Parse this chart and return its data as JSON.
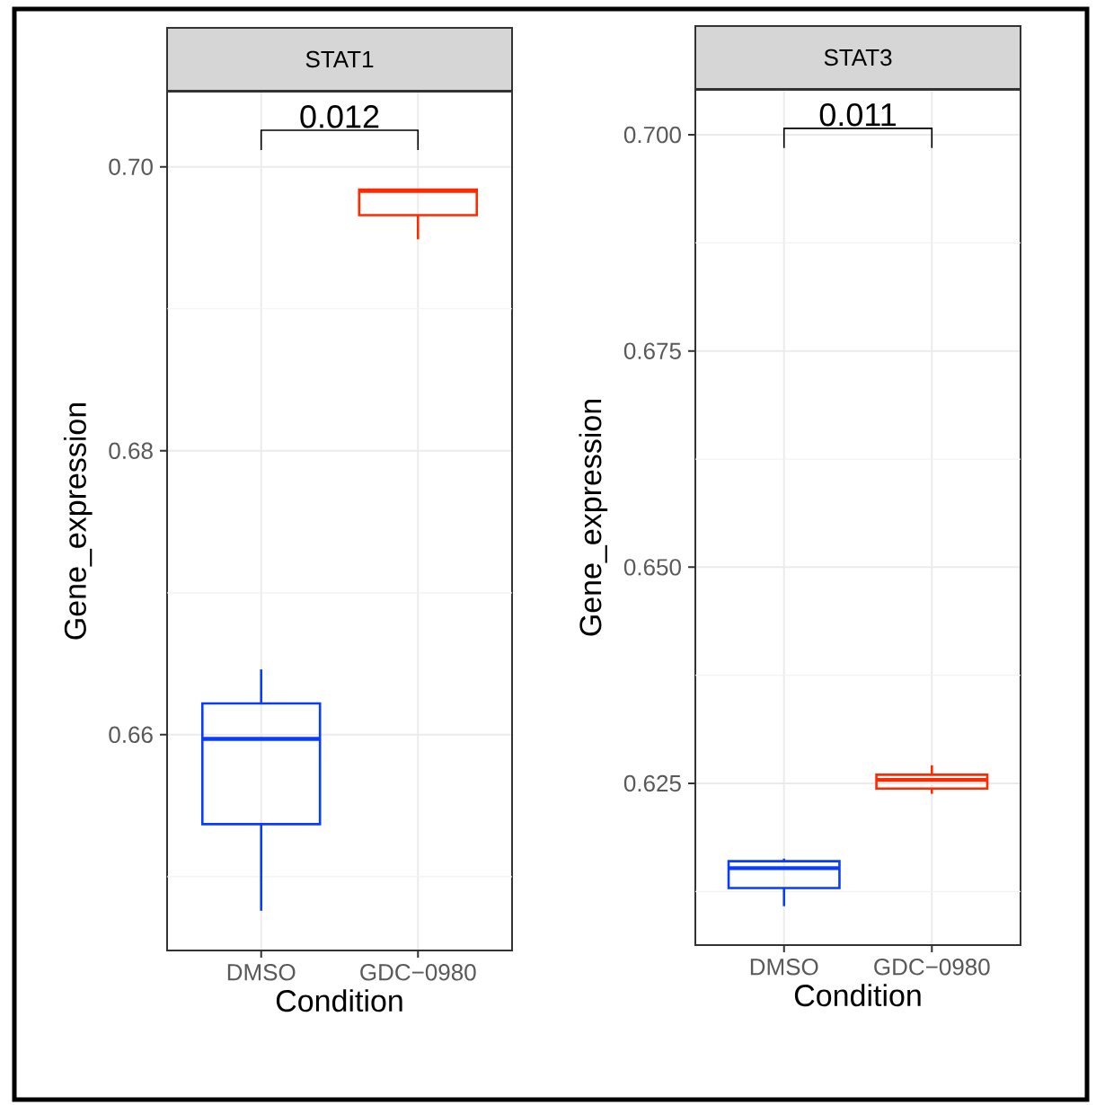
{
  "chart_data": [
    {
      "type": "box",
      "title": "STAT1",
      "xlabel": "Condition",
      "ylabel": "Gene_expression",
      "categories": [
        "DMSO",
        "GDC−0980"
      ],
      "boxes": [
        {
          "low": 0.6476,
          "q1": 0.6537,
          "median": 0.6597,
          "q3": 0.6622,
          "high": 0.6646
        },
        {
          "low": 0.6949,
          "q1": 0.6966,
          "median": 0.6983,
          "q3": 0.6984,
          "high": 0.6984
        }
      ],
      "colors": [
        "#0a3cff",
        "#ff2a00"
      ],
      "ylim": [
        0.6448,
        0.7053
      ],
      "yticks": [
        {
          "value": 0.65,
          "label": null
        },
        0.66,
        {
          "value": 0.67,
          "label": null
        },
        0.68,
        {
          "value": 0.69,
          "label": null
        },
        {
          "value": 0.7,
          "label": "0.70"
        }
      ],
      "grid": true,
      "annotations": [
        "0.012"
      ]
    },
    {
      "type": "box",
      "title": "STAT3",
      "xlabel": "Condition",
      "ylabel": "Gene_expression",
      "categories": [
        "DMSO",
        "GDC−0980"
      ],
      "boxes": [
        {
          "low": 0.6108,
          "q1": 0.6129,
          "median": 0.6152,
          "q3": 0.616,
          "high": 0.6163
        },
        {
          "low": 0.6238,
          "q1": 0.6244,
          "median": 0.6254,
          "q3": 0.626,
          "high": 0.6271
        }
      ],
      "colors": [
        "#0a3cff",
        "#ff2a00"
      ],
      "ylim": [
        0.6063,
        0.7052
      ],
      "yticks": [
        {
          "value": 0.6125,
          "label": null
        },
        0.625,
        {
          "value": 0.6375,
          "label": null
        },
        {
          "value": 0.65,
          "label": "0.650"
        },
        {
          "value": 0.6625,
          "label": null
        },
        0.675,
        {
          "value": 0.6875,
          "label": null
        },
        {
          "value": 0.7,
          "label": "0.700"
        }
      ],
      "grid": true,
      "annotations": [
        "0.011"
      ]
    }
  ]
}
